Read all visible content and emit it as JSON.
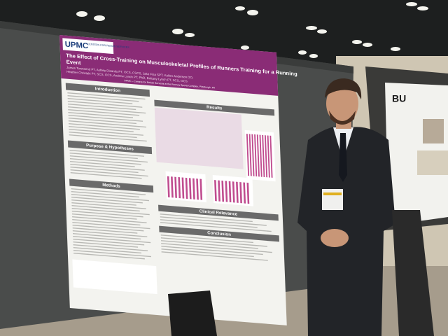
{
  "poster": {
    "logo": "UPMC",
    "logo_subtitle": "CENTERS FOR REHAB SERVICES",
    "title_lines": [
      "The Effect of Cross-Training on Musculoskeletal Profiles of Runners Training for a Running",
      "Event"
    ],
    "authors_lines": [
      "James Townsend PT, Ashley Disantis PT, OCS, CSCS, Jake Fisa SPT, Kellen Anderson DO,",
      "Heather Christaki PT, SCS, OCS, Andrew Lynch PT, PhD, Brittany Lynch PT, SCS, OCS"
    ],
    "affiliation": "UPMC – Centers for Rehab Services at the Rooney Sports Complex, Pittsburgh, PA",
    "sections": {
      "introduction": "Introduction",
      "purpose": "Purpose & Hypotheses",
      "methods": "Methods",
      "results": "Results",
      "clinical": "Clinical Relevance",
      "conclusion": "Conclusion"
    }
  },
  "side_poster": {
    "logo": "BU"
  }
}
